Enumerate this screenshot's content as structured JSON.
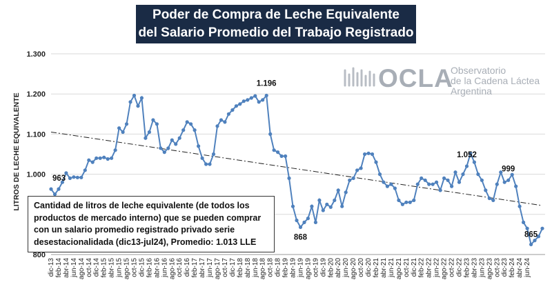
{
  "title": {
    "line1": "Poder de Compra de Leche Equivalente",
    "line2": "del Salario Promedio del Trabajo Registrado"
  },
  "logo": {
    "name": "OCLA",
    "sub1": "Observatorio",
    "sub2": "de la Cadena Láctea",
    "sub3": "Argentina"
  },
  "note": "Cantidad de litros de leche equivalente (de todos los productos de mercado interno) que se pueden comprar con un salario promedio registrado privado serie desestacionalidada (dic13-jul24), Promedio: 1.013 LLE",
  "chart_data": {
    "type": "line",
    "title": "Poder de Compra de Leche Equivalente del Salario Promedio del Trabajo Registrado",
    "xlabel": "",
    "ylabel": "LITROS DE LECHE EQUIVALENTE",
    "ylim": [
      800,
      1300
    ],
    "yticks": [
      800,
      900,
      1000,
      1100,
      1200,
      1300
    ],
    "ytick_labels": [
      "800",
      "900",
      "1.000",
      "1.100",
      "1.200",
      "1.300"
    ],
    "grid": true,
    "legend": "none",
    "xtick_labels": [
      "dic-13",
      "feb-14",
      "abr-14",
      "jun-14",
      "ago-14",
      "oct-14",
      "dic-14",
      "feb-15",
      "abr-15",
      "jun-15",
      "ago-15",
      "oct-15",
      "dic-15",
      "feb-16",
      "abr-16",
      "jun-16",
      "ago-16",
      "oct-16",
      "dic-16",
      "feb-17",
      "abr-17",
      "jun-17",
      "ago-17",
      "oct-17",
      "dic-17",
      "feb-18",
      "abr-18",
      "jun-18",
      "ago-18",
      "oct-18",
      "dic-18",
      "feb-19",
      "abr-19",
      "jun-19",
      "ago-19",
      "oct-19",
      "dic-19",
      "feb-20",
      "abr-20",
      "jun-20",
      "ago-20",
      "oct-20",
      "dic-20",
      "feb-21",
      "abr-21",
      "jun-21",
      "ago-21",
      "oct-21",
      "dic-21",
      "feb-22",
      "abr-22",
      "jun-22",
      "ago-22",
      "oct-22",
      "dic-22",
      "feb-23",
      "abr-23",
      "jun-23",
      "ago-23",
      "oct-23",
      "dic-23",
      "feb-24",
      "abr-24",
      "jun-24"
    ],
    "series": [
      {
        "color": "#4f81bd",
        "values": [
          963,
          950,
          963,
          980,
          1003,
          990,
          993,
          992,
          992,
          1010,
          1035,
          1030,
          1040,
          1040,
          1042,
          1038,
          1040,
          1060,
          1115,
          1105,
          1125,
          1180,
          1196,
          1170,
          1190,
          1090,
          1105,
          1135,
          1125,
          1065,
          1055,
          1065,
          1085,
          1075,
          1090,
          1110,
          1130,
          1125,
          1110,
          1070,
          1040,
          1025,
          1025,
          1050,
          1120,
          1135,
          1130,
          1150,
          1160,
          1170,
          1175,
          1182,
          1185,
          1190,
          1195,
          1180,
          1185,
          1196,
          1100,
          1060,
          1055,
          1045,
          1045,
          990,
          920,
          885,
          868,
          880,
          890,
          920,
          880,
          935,
          910,
          925,
          918,
          935,
          960,
          920,
          955,
          985,
          990,
          1010,
          1015,
          1050,
          1052,
          1050,
          1030,
          1000,
          980,
          970,
          975,
          965,
          935,
          925,
          930,
          930,
          935,
          975,
          990,
          985,
          975,
          975,
          980,
          960,
          990,
          985,
          970,
          1005,
          980,
          1000,
          1020,
          1052,
          1030,
          1000,
          985,
          960,
          940,
          935,
          975,
          1005,
          980,
          985,
          999,
          970,
          920,
          880,
          865,
          825,
          835,
          845,
          865
        ],
        "labels": [
          {
            "index": 0,
            "text": "963"
          },
          {
            "index": 57,
            "text": "1.196"
          },
          {
            "index": 66,
            "text": "868"
          },
          {
            "index": 110,
            "text": "1.052"
          },
          {
            "index": 121,
            "text": "999"
          },
          {
            "index": 127,
            "text": "865"
          }
        ]
      }
    ],
    "trendline": {
      "start": 1105,
      "end": 922,
      "style": "dash-dot"
    }
  }
}
